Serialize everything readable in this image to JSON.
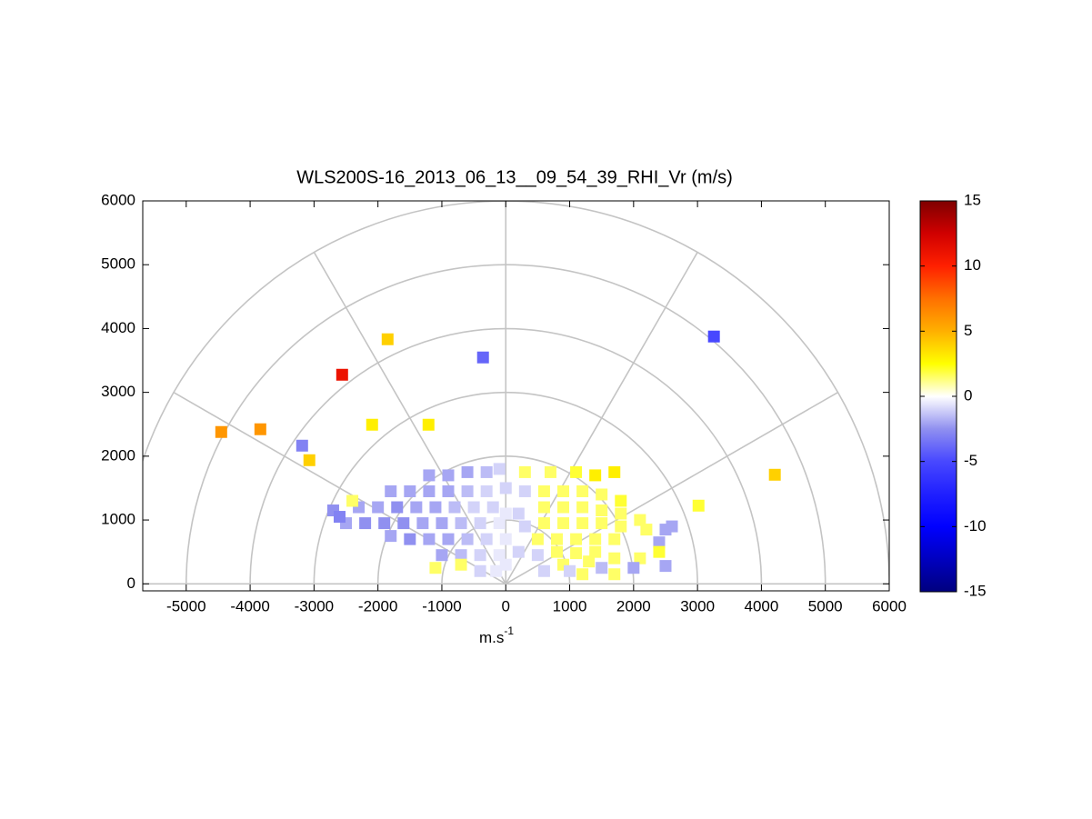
{
  "chart_data": {
    "type": "rhi",
    "title": "WLS200S-16_2013_06_13__09_54_39_RHI_Vr (m/s)",
    "xlabel": "m.s",
    "xlabel_superscript": "-1",
    "xlim": [
      -5680,
      6000
    ],
    "xticks": [
      -5000,
      -4000,
      -3000,
      -2000,
      -1000,
      0,
      1000,
      2000,
      3000,
      4000,
      5000,
      6000
    ],
    "ylim": [
      -110,
      6000
    ],
    "yticks": [
      0,
      1000,
      2000,
      3000,
      4000,
      5000,
      6000
    ],
    "rings": [
      1000,
      2000,
      3000,
      4000,
      5000,
      6000
    ],
    "spokes": [
      0,
      30,
      60,
      90,
      120,
      150,
      180
    ],
    "clim": [
      -15,
      15
    ],
    "cticks": [
      -15,
      -10,
      -5,
      0,
      5,
      10,
      15
    ],
    "colormap": [
      "#00007f",
      "#0000bf",
      "#0000ff",
      "#2020ff",
      "#4848ff",
      "#9090f0",
      "#ffffff",
      "#ffff00",
      "#ffb000",
      "#ff7000",
      "#ff2000",
      "#d00000",
      "#7f0000"
    ],
    "x": [
      -4452,
      -3840,
      -3186,
      -3073,
      -2560,
      -1849,
      -2091,
      -1209,
      -356,
      3257,
      4210,
      3016,
      -1200,
      -900,
      -600,
      -300,
      -100,
      -1800,
      -1500,
      -1200,
      -900,
      -600,
      -300,
      0,
      -2300,
      -2000,
      -1700,
      -1400,
      -1100,
      -800,
      -500,
      -200,
      -2500,
      -2200,
      -1900,
      -1600,
      -1300,
      -1000,
      -700,
      -400,
      -100,
      -1800,
      -1500,
      -1200,
      -900,
      -600,
      -300,
      0,
      -1000,
      -700,
      -400,
      -100,
      -400,
      -150,
      -2700,
      -2600,
      -2400,
      -1100,
      -700,
      300,
      700,
      1100,
      1400,
      1700,
      300,
      600,
      900,
      1200,
      1500,
      1800,
      600,
      900,
      1200,
      1500,
      1800,
      2100,
      600,
      900,
      1200,
      1500,
      1800,
      2200,
      2500,
      500,
      800,
      1100,
      1400,
      1700,
      2400,
      2600,
      500,
      800,
      1100,
      1400,
      900,
      1300,
      1700,
      2100,
      2400,
      600,
      1000,
      1500,
      2000,
      2500,
      1200,
      1700,
      0,
      200,
      0,
      200,
      300
    ],
    "y": [
      2379,
      2422,
      2165,
      1937,
      3276,
      3832,
      2493,
      2493,
      3547,
      3875,
      1709,
      1225,
      1700,
      1700,
      1750,
      1750,
      1800,
      1450,
      1450,
      1450,
      1450,
      1450,
      1450,
      1500,
      1200,
      1200,
      1200,
      1200,
      1200,
      1200,
      1200,
      1200,
      950,
      950,
      950,
      950,
      950,
      950,
      950,
      950,
      950,
      750,
      700,
      700,
      700,
      700,
      700,
      700,
      450,
      450,
      450,
      450,
      200,
      200,
      1150,
      1050,
      1300,
      250,
      300,
      1750,
      1750,
      1750,
      1700,
      1750,
      1450,
      1450,
      1450,
      1450,
      1400,
      1300,
      1200,
      1200,
      1200,
      1150,
      1100,
      1000,
      950,
      950,
      950,
      950,
      900,
      850,
      850,
      700,
      700,
      700,
      700,
      700,
      650,
      900,
      450,
      500,
      480,
      500,
      300,
      350,
      400,
      400,
      500,
      200,
      200,
      250,
      250,
      280,
      150,
      150,
      1100,
      1100,
      300,
      500,
      900
    ],
    "values": [
      6,
      6,
      -3,
      4,
      11,
      4,
      3,
      3,
      -4,
      -5,
      4,
      2,
      -2,
      -2,
      -2,
      -1.5,
      -1,
      -2,
      -2,
      -2,
      -2,
      -1.5,
      -1,
      -1,
      -2,
      -2,
      -2.5,
      -2,
      -2,
      -1.5,
      -1,
      -1,
      -2,
      -2.5,
      -2.5,
      -2.5,
      -2,
      -2,
      -1.5,
      -1,
      -0.5,
      -2,
      -2.5,
      -2,
      -2,
      -1.5,
      -1,
      -0.5,
      -2,
      -1.5,
      -1,
      -0.5,
      -1,
      -0.5,
      -2.5,
      -3,
      1.5,
      1.5,
      1.5,
      1.5,
      1.5,
      2,
      3,
      3,
      -1,
      1.5,
      1.5,
      1.5,
      1.5,
      2,
      1.5,
      1.5,
      1.5,
      1.5,
      1.5,
      1.5,
      1.5,
      1.5,
      1.5,
      1.5,
      1.5,
      1.5,
      -2,
      1.5,
      1.5,
      1.5,
      1.5,
      1.5,
      -2,
      -2,
      -1,
      1.5,
      1.5,
      1.5,
      1.5,
      1.5,
      1.5,
      1.5,
      2,
      -1,
      -1,
      -1.5,
      -2,
      -2,
      1.5,
      1.5,
      -0.5,
      -1,
      -0.5,
      -1,
      -1
    ]
  }
}
